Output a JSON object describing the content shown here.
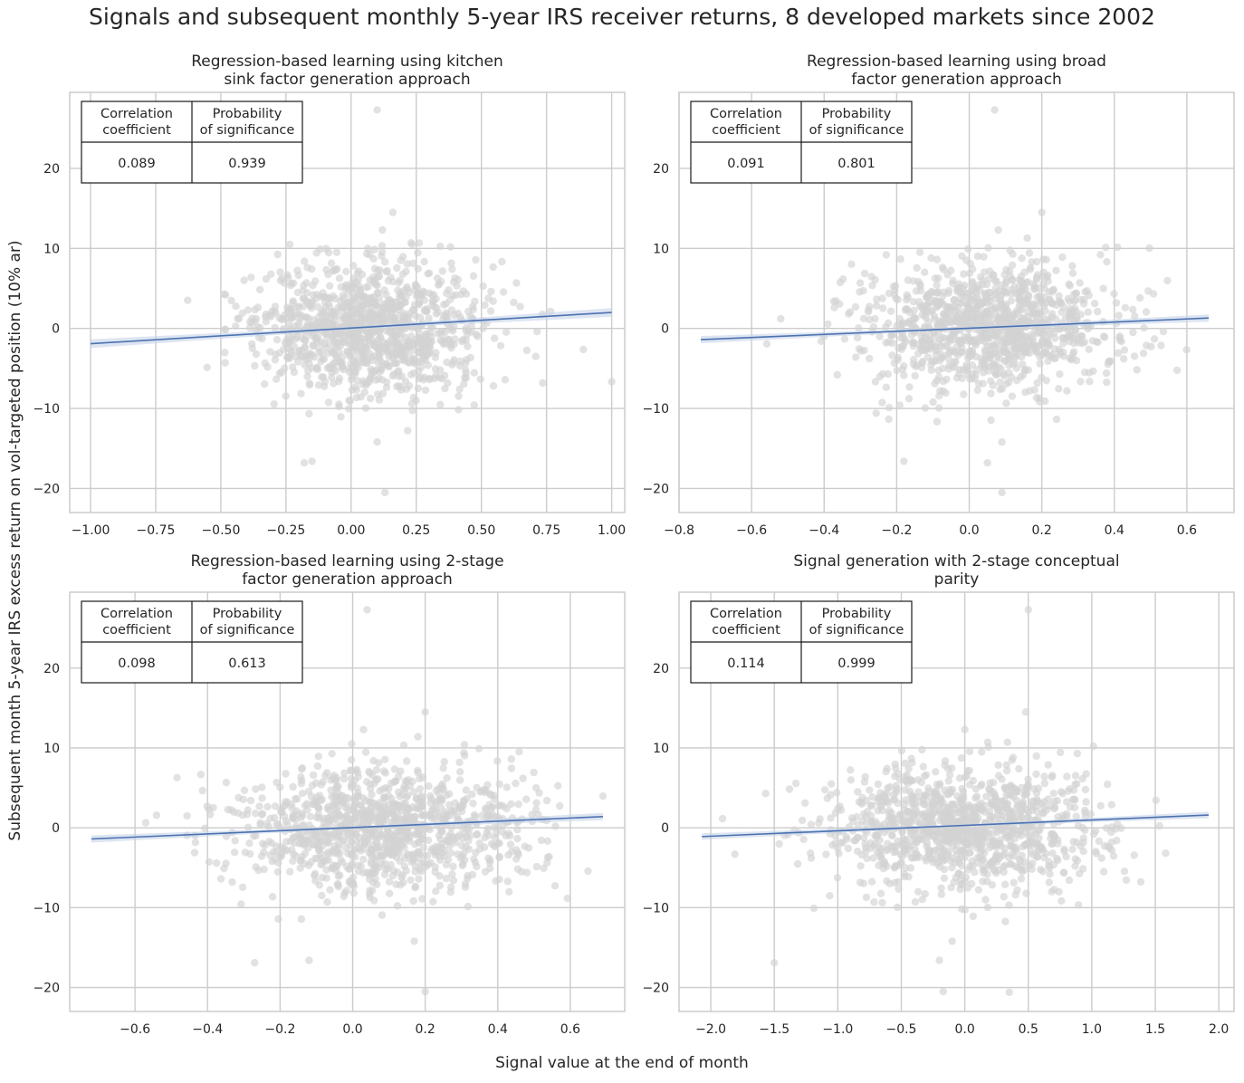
{
  "figure": {
    "title": "Signals and subsequent monthly 5-year IRS receiver returns, 8 developed markets since 2002",
    "ylabel": "Subsequent month 5-year IRS excess return on vol-targeted position (10% ar)",
    "xlabel": "Signal value at the end of month"
  },
  "colors": {
    "points": "#d3d3d3",
    "line": "#4c72b0",
    "band": "#c6d3ea",
    "grid": "#cccccc",
    "text": "#262626"
  },
  "chart_data": [
    {
      "type": "scatter",
      "title": "Regression-based learning using kitchen sink factor generation approach",
      "title_lines": [
        "Regression-based learning using kitchen",
        "sink factor generation approach"
      ],
      "xlim": [
        -1.08,
        1.05
      ],
      "ylim": [
        -23,
        29.5
      ],
      "xticks": [
        -1.0,
        -0.75,
        -0.5,
        -0.25,
        0.0,
        0.25,
        0.5,
        0.75,
        1.0
      ],
      "xtick_labels": [
        "−1.00",
        "−0.75",
        "−0.50",
        "−0.25",
        "0.00",
        "0.25",
        "0.50",
        "0.75",
        "1.00"
      ],
      "yticks": [
        -20,
        -10,
        0,
        10,
        20
      ],
      "ytick_labels": [
        "−20",
        "−10",
        "0",
        "10",
        "20"
      ],
      "regression": {
        "x": [
          -1.0,
          1.0
        ],
        "y": [
          -1.9,
          2.0
        ],
        "ci_halfwidth": 0.55
      },
      "cloud": {
        "cx": 0.07,
        "sx": 0.22,
        "xmin": -1.0,
        "xmax": 1.0,
        "sy": 4.2,
        "n": 1100,
        "seed": 11
      },
      "outliers": [
        [
          0.1,
          27.3
        ],
        [
          0.16,
          14.5
        ],
        [
          0.13,
          -20.5
        ],
        [
          -0.18,
          -16.8
        ],
        [
          -0.15,
          -16.6
        ],
        [
          0.1,
          -14.2
        ],
        [
          0.12,
          12.3
        ],
        [
          0.23,
          10.7
        ]
      ],
      "stats": {
        "header": [
          [
            "Correlation",
            "coefficient"
          ],
          [
            "Probability",
            "of significance"
          ]
        ],
        "values": [
          "0.089",
          "0.939"
        ]
      }
    },
    {
      "type": "scatter",
      "title": "Regression-based learning using broad factor generation approach",
      "title_lines": [
        "Regression-based learning using broad",
        "factor generation approach"
      ],
      "xlim": [
        -0.8,
        0.73
      ],
      "ylim": [
        -23,
        29.5
      ],
      "xticks": [
        -0.8,
        -0.6,
        -0.4,
        -0.2,
        0.0,
        0.2,
        0.4,
        0.6
      ],
      "xtick_labels": [
        "−0.8",
        "−0.6",
        "−0.4",
        "−0.2",
        "0.0",
        "0.2",
        "0.4",
        "0.6"
      ],
      "yticks": [
        -20,
        -10,
        0,
        10,
        20
      ],
      "ytick_labels": [
        "−20",
        "−10",
        "0",
        "10",
        "20"
      ],
      "regression": {
        "x": [
          -0.74,
          0.66
        ],
        "y": [
          -1.4,
          1.3
        ],
        "ci_halfwidth": 0.45
      },
      "cloud": {
        "cx": 0.06,
        "sx": 0.17,
        "xmin": -0.74,
        "xmax": 0.66,
        "sy": 3.9,
        "n": 1100,
        "seed": 23
      },
      "outliers": [
        [
          0.07,
          27.3
        ],
        [
          0.2,
          14.5
        ],
        [
          0.05,
          -16.8
        ],
        [
          -0.18,
          -16.6
        ],
        [
          0.09,
          -20.5
        ],
        [
          0.09,
          -14.2
        ],
        [
          0.08,
          12.3
        ],
        [
          0.16,
          11.3
        ]
      ],
      "stats": {
        "header": [
          [
            "Correlation",
            "coefficient"
          ],
          [
            "Probability",
            "of significance"
          ]
        ],
        "values": [
          "0.091",
          "0.801"
        ]
      }
    },
    {
      "type": "scatter",
      "title": "Regression-based learning using 2-stage factor generation approach",
      "title_lines": [
        "Regression-based learning using 2-stage",
        "factor generation approach"
      ],
      "xlim": [
        -0.78,
        0.75
      ],
      "ylim": [
        -23,
        29.5
      ],
      "xticks": [
        -0.6,
        -0.4,
        -0.2,
        0.0,
        0.2,
        0.4,
        0.6
      ],
      "xtick_labels": [
        "−0.6",
        "−0.4",
        "−0.2",
        "0.0",
        "0.2",
        "0.4",
        "0.6"
      ],
      "yticks": [
        -20,
        -10,
        0,
        10,
        20
      ],
      "ytick_labels": [
        "−20",
        "−10",
        "0",
        "10",
        "20"
      ],
      "regression": {
        "x": [
          -0.72,
          0.69
        ],
        "y": [
          -1.4,
          1.4
        ],
        "ci_halfwidth": 0.45
      },
      "cloud": {
        "cx": 0.08,
        "sx": 0.2,
        "xmin": -0.72,
        "xmax": 0.69,
        "sy": 3.9,
        "n": 1100,
        "seed": 37
      },
      "outliers": [
        [
          0.04,
          27.3
        ],
        [
          0.2,
          14.5
        ],
        [
          0.2,
          -20.5
        ],
        [
          -0.27,
          -16.9
        ],
        [
          -0.12,
          -16.6
        ],
        [
          0.17,
          -14.2
        ],
        [
          0.03,
          12.3
        ],
        [
          0.18,
          11.4
        ]
      ],
      "stats": {
        "header": [
          [
            "Correlation",
            "coefficient"
          ],
          [
            "Probability",
            "of significance"
          ]
        ],
        "values": [
          "0.098",
          "0.613"
        ]
      }
    },
    {
      "type": "scatter",
      "title": "Signal generation with 2-stage conceptual parity",
      "title_lines": [
        "Signal generation with 2-stage conceptual",
        "parity"
      ],
      "xlim": [
        -2.25,
        2.12
      ],
      "ylim": [
        -23,
        29.5
      ],
      "xticks": [
        -2.0,
        -1.5,
        -1.0,
        -0.5,
        0.0,
        0.5,
        1.0,
        1.5,
        2.0
      ],
      "xtick_labels": [
        "−2.0",
        "−1.5",
        "−1.0",
        "−0.5",
        "0.0",
        "0.5",
        "1.0",
        "1.5",
        "2.0"
      ],
      "yticks": [
        -20,
        -10,
        0,
        10,
        20
      ],
      "ytick_labels": [
        "−20",
        "−10",
        "0",
        "10",
        "20"
      ],
      "regression": {
        "x": [
          -2.07,
          1.92
        ],
        "y": [
          -1.1,
          1.6
        ],
        "ci_halfwidth": 0.4
      },
      "cloud": {
        "cx": 0.0,
        "sx": 0.55,
        "xmin": -2.07,
        "xmax": 1.92,
        "sy": 3.9,
        "n": 1100,
        "seed": 53
      },
      "outliers": [
        [
          0.5,
          27.3
        ],
        [
          0.48,
          14.5
        ],
        [
          -0.17,
          -20.5
        ],
        [
          0.35,
          -20.6
        ],
        [
          -1.5,
          -16.9
        ],
        [
          -0.2,
          -16.6
        ],
        [
          -0.1,
          -14.2
        ],
        [
          0.0,
          12.3
        ]
      ],
      "stats": {
        "header": [
          [
            "Correlation",
            "coefficient"
          ],
          [
            "Probability",
            "of significance"
          ]
        ],
        "values": [
          "0.114",
          "0.999"
        ]
      }
    }
  ]
}
